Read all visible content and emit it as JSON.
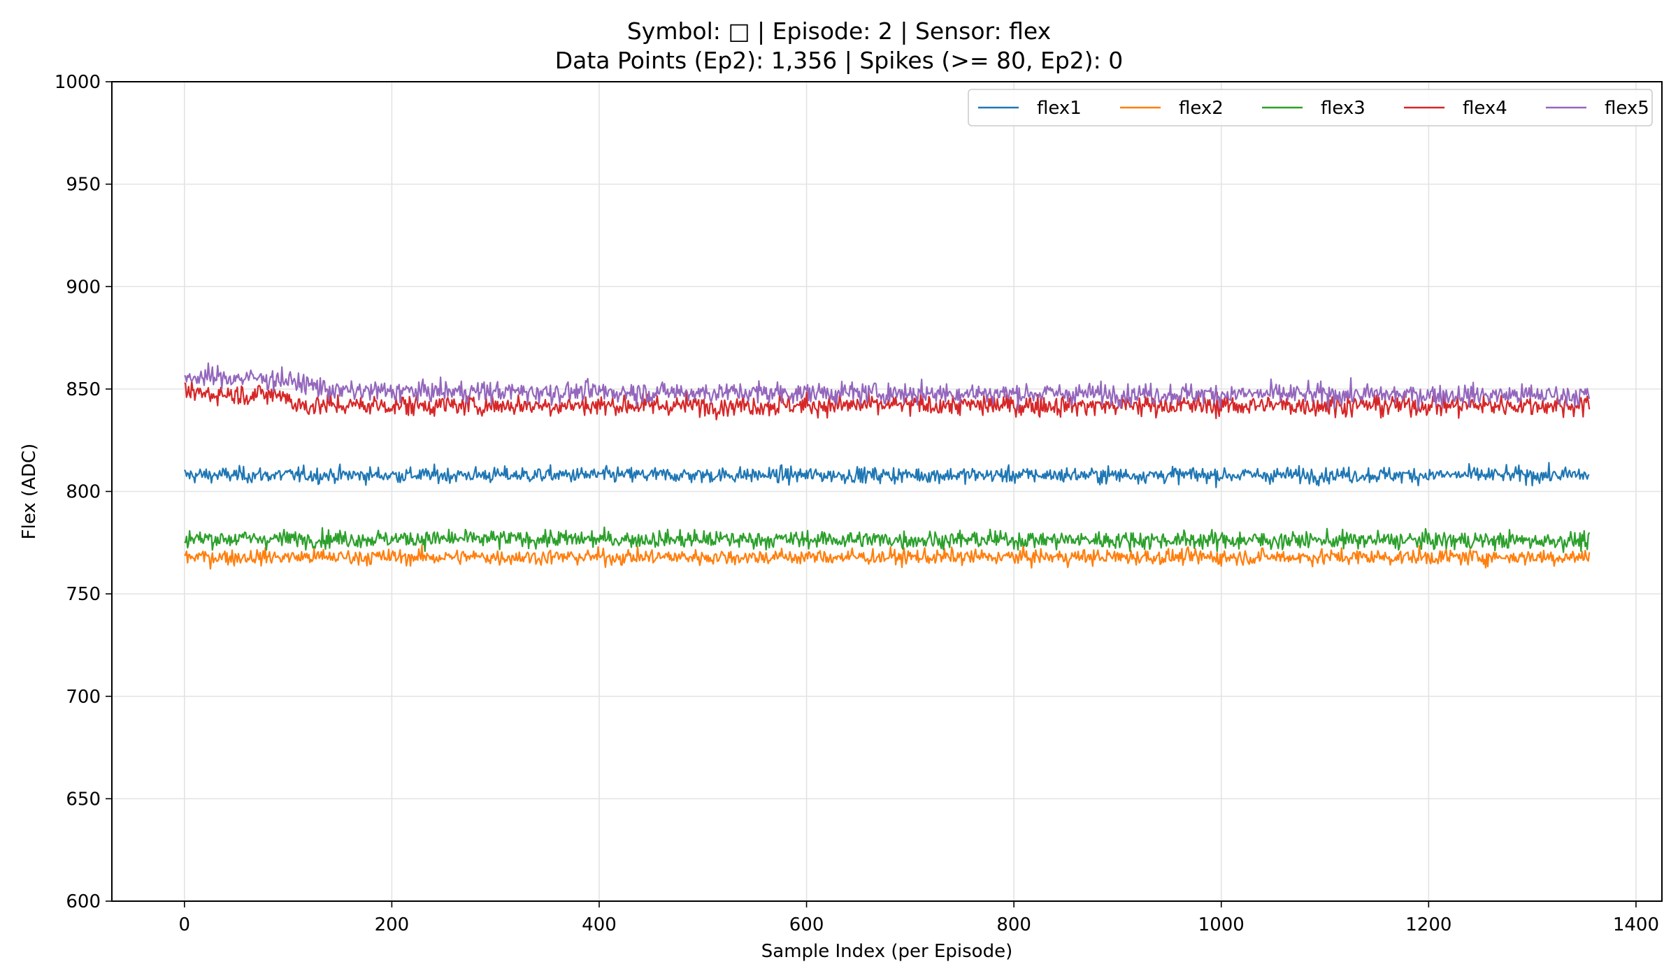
{
  "chart_data": {
    "type": "line",
    "title_line1": "Symbol: □ | Episode: 2 | Sensor: flex",
    "title_line2": "Data Points (Ep2): 1,356 | Spikes (>= 80, Ep2): 0",
    "xlabel": "Sample Index (per Episode)",
    "ylabel": "Flex (ADC)",
    "xlim": [
      -70,
      1425
    ],
    "ylim": [
      600,
      1000
    ],
    "x_ticks": [
      0,
      200,
      400,
      600,
      800,
      1000,
      1200,
      1400
    ],
    "y_ticks": [
      600,
      650,
      700,
      750,
      800,
      850,
      900,
      950,
      1000
    ],
    "grid": true,
    "legend_position": "top-right",
    "x_range": [
      0,
      1355
    ],
    "series": [
      {
        "name": "flex1",
        "color": "#1f77b4",
        "mean": 808,
        "range": [
          799,
          817
        ],
        "profile": [
          [
            0,
            808
          ],
          [
            1355,
            808
          ]
        ]
      },
      {
        "name": "flex2",
        "color": "#ff7f0e",
        "mean": 768,
        "range": [
          757,
          775
        ],
        "profile": [
          [
            0,
            768
          ],
          [
            1355,
            768
          ]
        ]
      },
      {
        "name": "flex3",
        "color": "#2ca02c",
        "mean": 776,
        "range": [
          765,
          785
        ],
        "profile": [
          [
            0,
            777
          ],
          [
            1355,
            776
          ]
        ]
      },
      {
        "name": "flex4",
        "color": "#d62728",
        "mean": 842,
        "range": [
          832,
          856
        ],
        "profile": [
          [
            0,
            848
          ],
          [
            100,
            847
          ],
          [
            105,
            842
          ],
          [
            1355,
            842
          ]
        ]
      },
      {
        "name": "flex5",
        "color": "#9467bd",
        "mean": 848,
        "range": [
          839,
          863
        ],
        "profile": [
          [
            0,
            856
          ],
          [
            90,
            855
          ],
          [
            150,
            849
          ],
          [
            1355,
            847
          ]
        ]
      }
    ]
  }
}
